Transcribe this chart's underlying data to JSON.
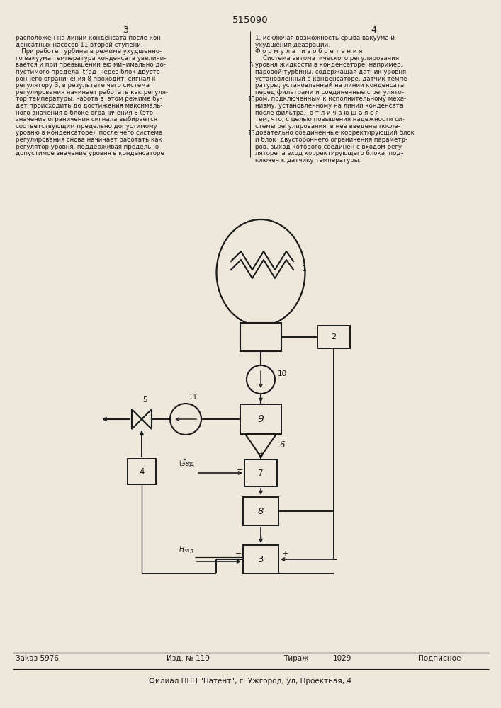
{
  "title": "515090",
  "col_left_num": "3",
  "col_right_num": "4",
  "text_left": [
    "расположен на линии конденсата после кон-",
    "денсатных насосов 11 второй ступени.",
    "   При работе турбины в режиме ухудшенно-",
    "го вакуума температура конденсата увеличи-",
    "вается и при превышении ею минимально до-",
    "пустимого предела  t°ад  через блок двусто-",
    "роннего ограничения 8 проходит  сигнал к",
    "регулятору 3, в результате чего система",
    "регулирования начинает работать как регуля-",
    "тор температуры. Работа в  этом режиме бу-",
    "дет происходить до достижения максималь-",
    "ного значения в блоке ограничения 8 (это",
    "значение ограничения сигнала выбирается",
    "соответствующим предельно допустимому",
    "уровню в конденсаторе), после чего система",
    "регулирования снова начинает работать как",
    "регулятор уровня, поддерживая предельно",
    "допустимое значение уровня в конденсаторе"
  ],
  "text_right": [
    "1, исключая возможность срыва вакуума и",
    "ухудшения деаэрации.",
    "Ф о р м у л а   и з о б р е т е н и я",
    "    Система автоматического регулирования",
    "уровня жидкости в конденсаторе, например,",
    "паровой турбины, содержащая датчик уровня,",
    "установленный в конденсаторе, датчик темпе-",
    "ратуры, установленный на линии конденсата",
    "перед фильтрами и соединенные с регулято-",
    "ром, подключенным к исполнительному меха-",
    "низму, установленному на линии конденсата",
    "после фильтра,  о т л и ч а ю щ а я с я",
    "тем, что, с целью повышения надежности си-",
    "стемы регулирования, в нее введены после-",
    "довательно соединенные корректирующий блок",
    "и блок  двустороннего ограничения параметр-",
    "ров, выход которого соединен с входом регу-",
    "ляторе  а вход корректирующего блока  под-",
    "ключен к датчику температуры."
  ],
  "footer_zakazh": "Заказ 5976",
  "footer_izd": "Изд. № 119",
  "footer_tirazh_label": "Тираж",
  "footer_tirazh_num": "1029",
  "footer_podp": "Подписное",
  "footer_org": "Филиал ППП \"Патент\", г. Ужгород, ул, Проектная, 4",
  "bg_color": "#ede8db",
  "lc": "#1a1a1a"
}
